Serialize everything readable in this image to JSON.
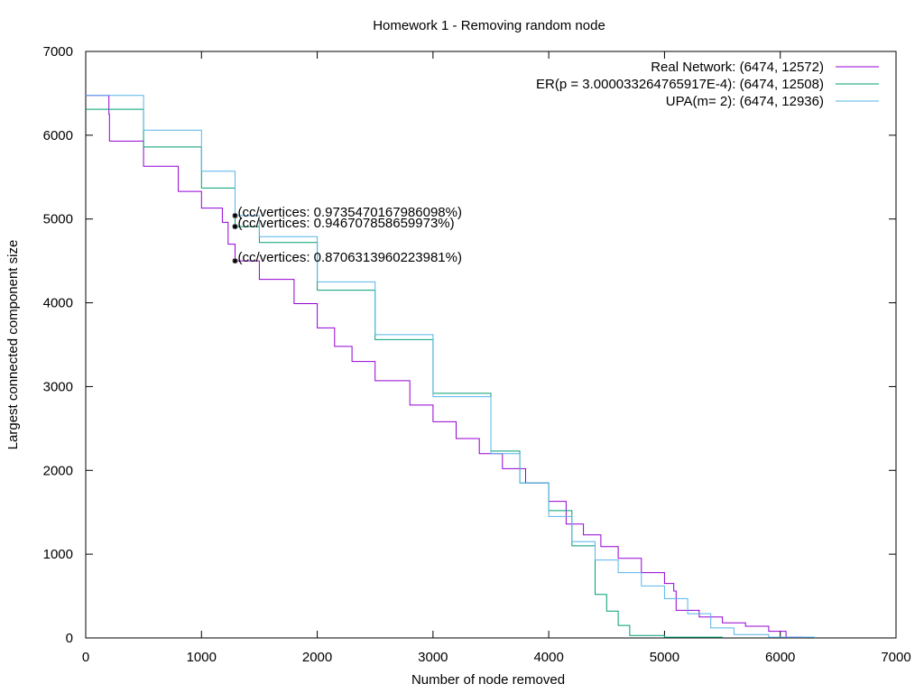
{
  "chart_data": {
    "type": "line",
    "title": "Homework 1 - Removing random node",
    "xlabel": "Number of node removed",
    "ylabel": "Largest connected component size",
    "xlim": [
      0,
      7000
    ],
    "ylim": [
      0,
      7000
    ],
    "xticks": [
      "0",
      "1000",
      "2000",
      "3000",
      "4000",
      "5000",
      "6000",
      "7000"
    ],
    "yticks": [
      "0",
      "1000",
      "2000",
      "3000",
      "4000",
      "5000",
      "6000",
      "7000"
    ],
    "grid": false,
    "legend_position": "top-right",
    "series": [
      {
        "name": "Real Network: (6474, 12572)",
        "color": "#9400d3",
        "points": [
          [
            0,
            6474
          ],
          [
            200,
            6250
          ],
          [
            205,
            5930
          ],
          [
            500,
            5630
          ],
          [
            800,
            5330
          ],
          [
            1000,
            5130
          ],
          [
            1180,
            4960
          ],
          [
            1230,
            4700
          ],
          [
            1290,
            4500
          ],
          [
            1500,
            4280
          ],
          [
            1800,
            3990
          ],
          [
            2000,
            3700
          ],
          [
            2150,
            3480
          ],
          [
            2300,
            3300
          ],
          [
            2500,
            3070
          ],
          [
            2800,
            2780
          ],
          [
            3000,
            2580
          ],
          [
            3200,
            2380
          ],
          [
            3400,
            2200
          ],
          [
            3600,
            2020
          ],
          [
            3800,
            1850
          ],
          [
            4000,
            1630
          ],
          [
            4150,
            1360
          ],
          [
            4300,
            1230
          ],
          [
            4450,
            1090
          ],
          [
            4600,
            950
          ],
          [
            4800,
            780
          ],
          [
            5000,
            650
          ],
          [
            5080,
            560
          ],
          [
            5100,
            330
          ],
          [
            5300,
            250
          ],
          [
            5500,
            180
          ],
          [
            5700,
            140
          ],
          [
            5900,
            80
          ],
          [
            6050,
            10
          ],
          [
            6200,
            0
          ]
        ]
      },
      {
        "name": "ER(p = 3.000033264765917E-4): (6474, 12508)",
        "color": "#009e73",
        "points": [
          [
            0,
            6310
          ],
          [
            500,
            5860
          ],
          [
            1000,
            5370
          ],
          [
            1290,
            4910
          ],
          [
            1500,
            4720
          ],
          [
            2000,
            4150
          ],
          [
            2500,
            3560
          ],
          [
            3000,
            2920
          ],
          [
            3500,
            2230
          ],
          [
            3750,
            1850
          ],
          [
            4000,
            1520
          ],
          [
            4200,
            1100
          ],
          [
            4400,
            520
          ],
          [
            4500,
            320
          ],
          [
            4600,
            150
          ],
          [
            4700,
            30
          ],
          [
            5000,
            10
          ],
          [
            5500,
            0
          ]
        ]
      },
      {
        "name": "UPA(m= 2): (6474, 12936)",
        "color": "#56b4e9",
        "points": [
          [
            0,
            6474
          ],
          [
            500,
            6060
          ],
          [
            1000,
            5570
          ],
          [
            1290,
            5040
          ],
          [
            1500,
            4790
          ],
          [
            2000,
            4250
          ],
          [
            2500,
            3620
          ],
          [
            3000,
            2880
          ],
          [
            3500,
            2200
          ],
          [
            3750,
            1850
          ],
          [
            4000,
            1450
          ],
          [
            4200,
            1150
          ],
          [
            4400,
            930
          ],
          [
            4600,
            780
          ],
          [
            4800,
            620
          ],
          [
            5000,
            470
          ],
          [
            5200,
            290
          ],
          [
            5400,
            120
          ],
          [
            5600,
            40
          ],
          [
            5900,
            10
          ],
          [
            6300,
            0
          ]
        ]
      }
    ],
    "annotations": [
      {
        "text": "(cc/vertices:  0.9735470167986098%)",
        "x": 1290,
        "y": 5040
      },
      {
        "text": "(cc/vertices:  0.946707858659973%)",
        "x": 1290,
        "y": 4910
      },
      {
        "text": "(cc/vertices:  0.8706313960223981%)",
        "x": 1290,
        "y": 4500
      }
    ]
  }
}
